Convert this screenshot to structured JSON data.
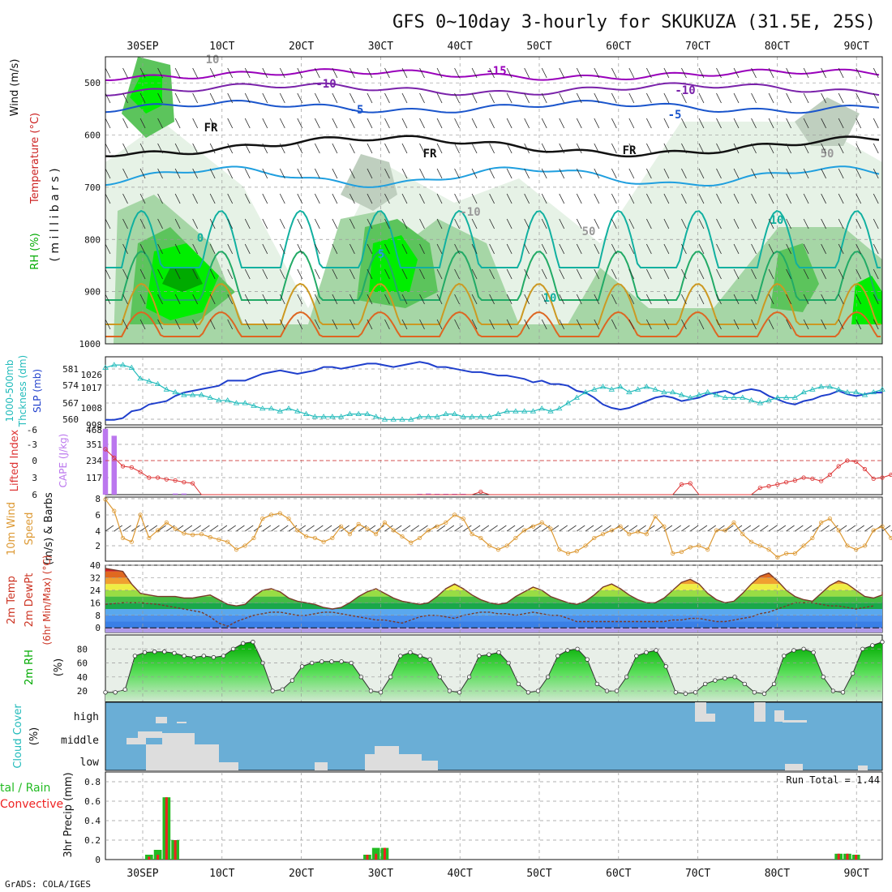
{
  "title": "GFS 0~10day 3-hourly for SKUKUZA (31.5E, 25S)",
  "footer": "GrADS: COLA/IGES",
  "x_axis": {
    "date_labels": [
      "30SEP",
      "1OCT",
      "2OCT",
      "3OCT",
      "4OCT",
      "5OCT",
      "6OCT",
      "7OCT",
      "8OCT",
      "9OCT"
    ],
    "display_labels": [
      "30SEP",
      "10CT",
      "20CT",
      "30CT",
      "40CT",
      "50CT",
      "60CT",
      "70CT",
      "80CT",
      "90CT"
    ]
  },
  "colors": {
    "temp_neg15": "#9900bb",
    "temp_neg10": "#7a22aa",
    "temp_neg5": "#1a55cc",
    "temp_fr": "#111111",
    "temp_5": "#1f9fdf",
    "temp_10": "#11b0a0",
    "temp_15": "#22aa66",
    "temp_20": "#cc9922",
    "temp_25": "#dd6622",
    "temp_30": "#cc2222",
    "rh_light": "#e6f2e6",
    "rh_mid": "#a6d6a6",
    "rh_green": "#5cc45c",
    "rh_bright": "#00ee00",
    "rh_dark": "#00aa00",
    "rh_gray": "#bfcfbf",
    "slp": "#1f3fcc",
    "thickness": "#22bbbb",
    "cape": "#bb77ee",
    "lifted": "#dd3333",
    "wind": "#dd9933",
    "cloud_bg": "#6aaed6",
    "cloud_fill": "#dddddd",
    "precip_total": "#22bb22",
    "precip_conv": "#ee2222"
  },
  "panels": {
    "upper_air": {
      "ylabel_parts": [
        "Wind (m/s)",
        "Temperature (°C)",
        "RH (%)",
        "( m i l l i b a r s )"
      ],
      "yticks": [
        "500",
        "600",
        "700",
        "800",
        "900",
        "1000"
      ],
      "contour_labels": [
        "-15",
        "-10",
        "-10",
        "-5",
        "-5",
        "FR",
        "FR",
        "FR",
        "0",
        "5",
        "10",
        "10",
        "-10",
        "50",
        "50",
        "10"
      ]
    },
    "slp": {
      "ylabel_parts": [
        "1000-500mb",
        "Thckness (dm)",
        "SLP (mb)"
      ],
      "left_ticks": [
        "581",
        "574",
        "567",
        "560"
      ],
      "right_ticks": [
        "1026",
        "1017",
        "1008",
        "998"
      ]
    },
    "lifted": {
      "ylabel_parts": [
        "Lifted Index",
        "CAPE (J/kg)"
      ],
      "left_ticks": [
        "-6",
        "-3",
        "0",
        "3",
        "6"
      ],
      "right_ticks": [
        "468",
        "351",
        "234",
        "117"
      ]
    },
    "wind10m": {
      "ylabel_parts": [
        "10m Wind",
        "Speed",
        "(m/s) & Barbs"
      ],
      "yticks": [
        "8",
        "6",
        "4",
        "2"
      ]
    },
    "temp2m": {
      "ylabel_parts": [
        "2m Temp",
        "2m DewPt",
        "(6hr Min/Max) (°C)"
      ],
      "yticks": [
        "40",
        "32",
        "24",
        "16",
        "8",
        "0"
      ]
    },
    "rh2m": {
      "ylabel_parts": [
        "2m RH",
        "(%)"
      ],
      "yticks": [
        "80",
        "60",
        "40",
        "20"
      ]
    },
    "cloud": {
      "ylabel_parts": [
        "Cloud Cover",
        "(%)"
      ],
      "level_labels": [
        "high",
        "middle",
        "low"
      ]
    },
    "precip": {
      "ylabel_parts": [
        "tal / Rain",
        "Convective",
        "3hr Precip (mm)"
      ],
      "yticks": [
        "0.8",
        "0.6",
        "0.4",
        "0.2",
        "0"
      ],
      "run_total": "Run Total = 1.44"
    }
  },
  "chart_data": [
    {
      "type": "line",
      "title": "1000-500mb Thickness (dm) / SLP (mb)",
      "series": [
        {
          "name": "SLP (mb)",
          "values": [
            999,
            999,
            1000,
            1004,
            1005,
            1008,
            1009,
            1010,
            1013,
            1015,
            1016,
            1017,
            1018,
            1019,
            1022,
            1022,
            1022,
            1024,
            1026,
            1027,
            1028,
            1027,
            1026,
            1027,
            1028,
            1030,
            1030,
            1029,
            1030,
            1031,
            1032,
            1032,
            1031,
            1030,
            1031,
            1032,
            1033,
            1032,
            1030,
            1030,
            1029,
            1028,
            1027,
            1027,
            1026,
            1025,
            1025,
            1024,
            1023,
            1021,
            1022,
            1020,
            1020,
            1019,
            1016,
            1015,
            1012,
            1008,
            1006,
            1005,
            1006,
            1008,
            1010,
            1012,
            1013,
            1012,
            1010,
            1011,
            1012,
            1014,
            1015,
            1016,
            1014,
            1016,
            1017,
            1016,
            1013,
            1011,
            1009,
            1008,
            1010,
            1011,
            1013,
            1014,
            1016,
            1014,
            1013,
            1014,
            1015,
            1015
          ]
        },
        {
          "name": "1000-500mb Thickness (dm)",
          "values": [
            579,
            580,
            580,
            579,
            575,
            574,
            573,
            571,
            570,
            569,
            569,
            569,
            568,
            567,
            567,
            566,
            566,
            565,
            564,
            564,
            563,
            564,
            563,
            562,
            561,
            561,
            561,
            561,
            562,
            562,
            562,
            561,
            560,
            560,
            560,
            560,
            561,
            561,
            561,
            562,
            562,
            561,
            561,
            561,
            561,
            562,
            563,
            563,
            563,
            563,
            564,
            563,
            564,
            566,
            568,
            570,
            571,
            572,
            571,
            572,
            570,
            571,
            572,
            571,
            570,
            570,
            569,
            568,
            569,
            570,
            569,
            568,
            568,
            568,
            567,
            566,
            567,
            568,
            568,
            568,
            570,
            571,
            572,
            572,
            571,
            570,
            570,
            569,
            570,
            571
          ]
        }
      ]
    },
    {
      "type": "bar",
      "title": "CAPE (J/kg) / Lifted Index",
      "series": [
        {
          "name": "CAPE (J/kg)",
          "values": [
            470,
            420,
            0,
            0,
            0,
            0,
            0,
            0,
            8,
            8,
            0,
            0,
            0,
            0,
            0,
            0,
            0,
            0,
            0,
            0,
            0,
            0,
            0,
            0,
            0,
            0,
            0,
            0,
            0,
            0,
            0,
            0,
            0,
            0,
            0,
            0,
            6,
            8,
            6,
            6,
            6,
            6,
            0,
            0,
            0,
            0,
            0,
            0,
            0,
            0,
            0,
            0,
            0,
            0,
            0,
            0,
            0,
            0,
            0,
            0,
            0,
            0,
            0,
            0,
            0,
            0,
            0,
            0,
            0,
            0,
            0,
            0,
            0,
            0,
            0,
            0,
            0,
            0,
            0,
            0,
            0,
            0,
            0,
            0,
            0,
            0,
            0,
            0,
            0,
            0
          ]
        },
        {
          "name": "Lifted Index",
          "values": [
            -2,
            -0.5,
            1,
            1.2,
            2,
            3,
            3,
            3.3,
            3.5,
            3.8,
            4,
            6,
            6,
            6,
            6,
            6,
            6,
            6,
            6,
            6,
            6,
            6,
            6,
            6,
            6,
            6,
            6,
            6,
            6,
            6,
            6,
            6,
            6,
            6,
            6,
            6,
            6,
            6,
            6,
            6,
            6,
            6,
            6,
            5.5,
            6,
            6,
            6,
            6,
            6,
            6,
            6,
            6,
            6,
            6,
            6,
            6,
            6,
            6,
            6,
            6,
            6,
            6,
            6,
            6,
            6,
            6,
            4.2,
            4,
            6,
            6,
            6,
            6,
            6,
            6,
            6,
            4.8,
            4.5,
            4.2,
            3.8,
            3.5,
            3,
            3.2,
            3.6,
            2.5,
            1,
            0,
            0.2,
            1.5,
            3.2,
            3,
            2.5,
            1.8,
            1.4
          ]
        }
      ]
    },
    {
      "type": "line",
      "title": "10m Wind Speed (m/s)",
      "series": [
        {
          "name": "10m Wind Speed",
          "values": [
            8,
            6.5,
            3,
            2.5,
            6,
            3,
            4,
            5,
            4.2,
            3.6,
            3.4,
            3.5,
            3.1,
            2.8,
            2.5,
            1.5,
            2,
            3,
            5.5,
            6,
            6.2,
            5.5,
            4,
            3.2,
            3,
            2.5,
            3,
            4.5,
            3.5,
            4.8,
            4.2,
            3.5,
            5,
            4,
            3.2,
            2.4,
            3,
            4,
            4.5,
            5,
            6,
            5.5,
            3.5,
            3,
            2,
            1.5,
            2,
            3,
            4,
            4.5,
            5,
            4.2,
            1.5,
            1,
            1.3,
            2,
            3,
            3.5,
            4,
            4.5,
            3.5,
            3.8,
            3.5,
            5.8,
            4.5,
            1,
            1.2,
            1.8,
            2,
            1.5,
            4,
            4,
            5,
            3.5,
            2.5,
            2,
            1.5,
            0.5,
            1,
            1,
            2,
            3,
            5,
            5.5,
            4,
            2,
            1.5,
            2,
            4,
            4.5,
            3,
            2.5,
            1,
            1.5,
            2.5
          ]
        }
      ]
    },
    {
      "type": "area",
      "title": "2m Temp / 2m DewPt (°C)",
      "series": [
        {
          "name": "2m Temp",
          "values": [
            38,
            37,
            36,
            28,
            22,
            21,
            20,
            20,
            20,
            19,
            19,
            20,
            21,
            18,
            15,
            14,
            15,
            20,
            24,
            25,
            23,
            19,
            17,
            16,
            15,
            13,
            12,
            13,
            16,
            20,
            23,
            25,
            22,
            19,
            17,
            16,
            15,
            16,
            20,
            25,
            28,
            25,
            21,
            18,
            16,
            15,
            16,
            20,
            23,
            26,
            24,
            20,
            18,
            16,
            15,
            17,
            21,
            26,
            28,
            25,
            21,
            18,
            16,
            16,
            19,
            24,
            29,
            31,
            28,
            22,
            18,
            16,
            17,
            22,
            28,
            33,
            35,
            30,
            24,
            20,
            18,
            17,
            22,
            27,
            30,
            28,
            24,
            20,
            19,
            21,
            23
          ]
        },
        {
          "name": "2m DewPt",
          "values": [
            15,
            15.5,
            16,
            16,
            16,
            15.5,
            15,
            14,
            13,
            12,
            11,
            10,
            7,
            3,
            1,
            4,
            6,
            8,
            9,
            10,
            10,
            9,
            8,
            8,
            9,
            10,
            10,
            9,
            8,
            7,
            6,
            5,
            5,
            4,
            3,
            5,
            7,
            8,
            8,
            7,
            6,
            8,
            9,
            10,
            10,
            9,
            9,
            8,
            9,
            10,
            9,
            8,
            8,
            6,
            4,
            4,
            4,
            4,
            4,
            4,
            4,
            4,
            4,
            4,
            4,
            5,
            5,
            6,
            6,
            5,
            4,
            4,
            5,
            6,
            7,
            9,
            10,
            12,
            14,
            16,
            16,
            16,
            15,
            14,
            14,
            13,
            12,
            13,
            14
          ]
        }
      ]
    },
    {
      "type": "area",
      "title": "2m RH (%)",
      "series": [
        {
          "name": "2m RH",
          "values": [
            18,
            18,
            22,
            70,
            75,
            76,
            76,
            74,
            70,
            68,
            70,
            68,
            70,
            80,
            88,
            90,
            60,
            20,
            22,
            35,
            55,
            60,
            62,
            62,
            62,
            60,
            40,
            20,
            18,
            40,
            70,
            75,
            70,
            65,
            40,
            20,
            18,
            40,
            70,
            72,
            75,
            60,
            30,
            18,
            20,
            40,
            70,
            78,
            80,
            65,
            30,
            20,
            20,
            40,
            70,
            75,
            78,
            55,
            18,
            16,
            18,
            30,
            35,
            38,
            40,
            30,
            18,
            16,
            30,
            70,
            78,
            80,
            75,
            40,
            20,
            18,
            45,
            80,
            85,
            90
          ]
        }
      ]
    },
    {
      "type": "bar",
      "title": "3hr Precip (mm)",
      "series": [
        {
          "name": "Total / Rain",
          "values": [
            0,
            0,
            0,
            0,
            0,
            0.05,
            0.1,
            0.64,
            0.2,
            0,
            0,
            0,
            0,
            0,
            0,
            0,
            0,
            0,
            0,
            0,
            0,
            0,
            0,
            0,
            0,
            0,
            0,
            0,
            0,
            0,
            0.05,
            0.12,
            0.12,
            0,
            0,
            0,
            0,
            0,
            0,
            0,
            0,
            0,
            0,
            0,
            0,
            0,
            0,
            0,
            0,
            0,
            0,
            0,
            0,
            0,
            0,
            0,
            0,
            0,
            0,
            0,
            0,
            0,
            0,
            0,
            0,
            0,
            0,
            0,
            0,
            0,
            0,
            0,
            0,
            0,
            0,
            0,
            0,
            0,
            0,
            0,
            0,
            0,
            0,
            0,
            0.06,
            0.06,
            0.05,
            0,
            0,
            0
          ]
        },
        {
          "name": "Convective",
          "values": [
            0,
            0,
            0,
            0,
            0,
            0.03,
            0.05,
            0.64,
            0.2,
            0,
            0,
            0,
            0,
            0,
            0,
            0,
            0,
            0,
            0,
            0,
            0,
            0,
            0,
            0,
            0,
            0,
            0,
            0,
            0,
            0,
            0.05,
            0.06,
            0.12,
            0,
            0,
            0,
            0,
            0,
            0,
            0,
            0,
            0,
            0,
            0,
            0,
            0,
            0,
            0,
            0,
            0,
            0,
            0,
            0,
            0,
            0,
            0,
            0,
            0,
            0,
            0,
            0,
            0,
            0,
            0,
            0,
            0,
            0,
            0,
            0,
            0,
            0,
            0,
            0,
            0,
            0,
            0,
            0,
            0,
            0,
            0,
            0,
            0,
            0,
            0,
            0.06,
            0.06,
            0.05,
            0,
            0,
            0
          ]
        }
      ]
    }
  ]
}
